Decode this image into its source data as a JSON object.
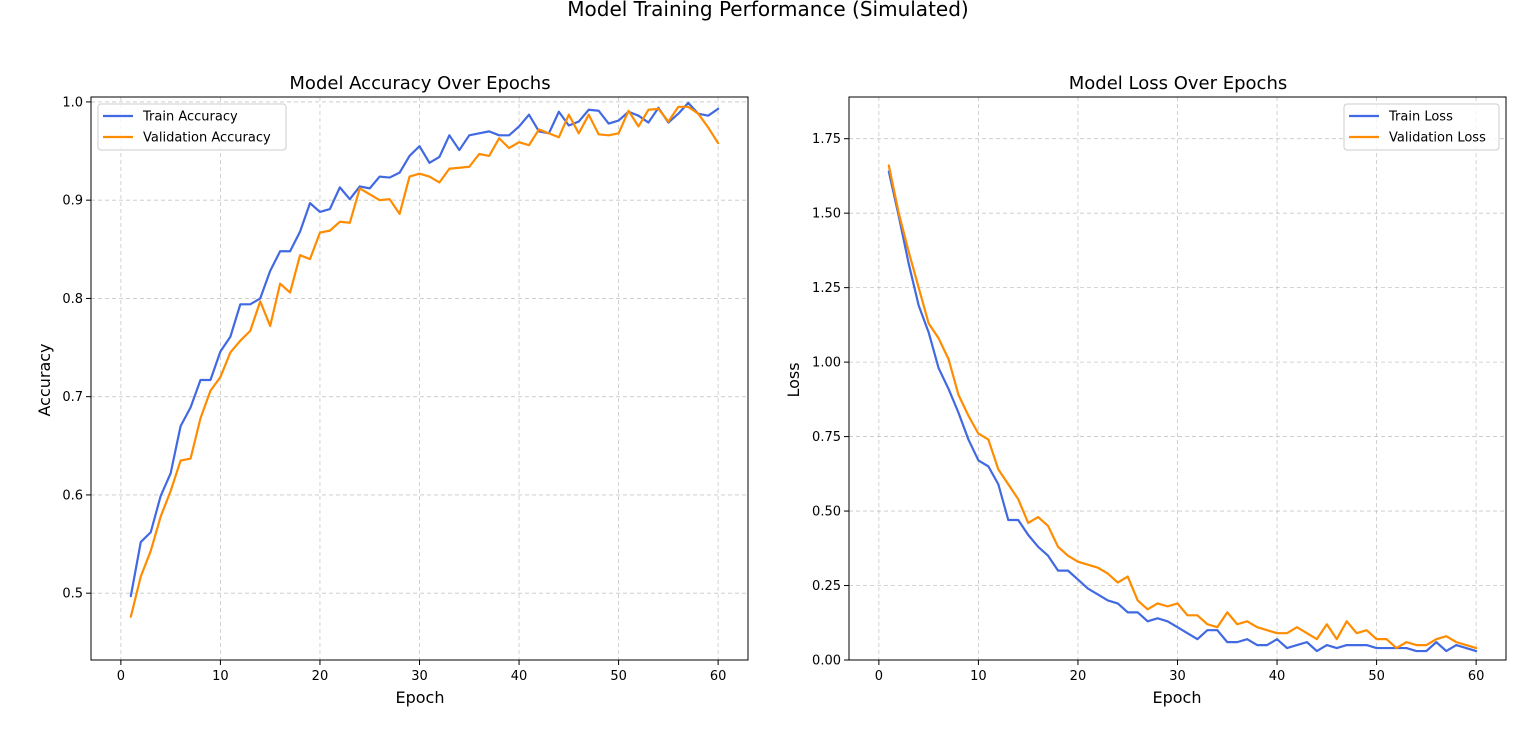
{
  "figure": {
    "suptitle": "Model Training Performance (Simulated)"
  },
  "colors": {
    "train": "#4169e1",
    "validation": "#ff8c00"
  },
  "chart_data": [
    {
      "type": "line",
      "title": "Model Accuracy Over Epochs",
      "xlabel": "Epoch",
      "ylabel": "Accuracy",
      "xlim": [
        -3,
        63
      ],
      "ylim": [
        0.432,
        1.005
      ],
      "xticks": [
        0,
        10,
        20,
        30,
        40,
        50,
        60
      ],
      "yticks": [
        0.5,
        0.6,
        0.7,
        0.8,
        0.9,
        1.0
      ],
      "ytick_labels": [
        "0.5",
        "0.6",
        "0.7",
        "0.8",
        "0.9",
        "1.0"
      ],
      "grid": true,
      "legend": "upper-left",
      "series": [
        {
          "name": "Train Accuracy",
          "color": "#4169e1",
          "x": [
            1,
            2,
            3,
            4,
            5,
            6,
            7,
            8,
            9,
            10,
            11,
            12,
            13,
            14,
            15,
            16,
            17,
            18,
            19,
            20,
            21,
            22,
            23,
            24,
            25,
            26,
            27,
            28,
            29,
            30,
            31,
            32,
            33,
            34,
            35,
            36,
            37,
            38,
            39,
            40,
            41,
            42,
            43,
            44,
            45,
            46,
            47,
            48,
            49,
            50,
            51,
            52,
            53,
            54,
            55,
            56,
            57,
            58,
            59,
            60
          ],
          "values": [
            0.497,
            0.552,
            0.562,
            0.599,
            0.622,
            0.67,
            0.689,
            0.717,
            0.717,
            0.746,
            0.761,
            0.794,
            0.794,
            0.8,
            0.828,
            0.848,
            0.848,
            0.868,
            0.897,
            0.888,
            0.891,
            0.913,
            0.901,
            0.914,
            0.912,
            0.924,
            0.923,
            0.928,
            0.945,
            0.955,
            0.938,
            0.944,
            0.966,
            0.951,
            0.966,
            0.968,
            0.97,
            0.966,
            0.966,
            0.975,
            0.987,
            0.97,
            0.968,
            0.99,
            0.976,
            0.98,
            0.992,
            0.991,
            0.978,
            0.981,
            0.99,
            0.986,
            0.979,
            0.994,
            0.979,
            0.988,
            0.999,
            0.988,
            0.986,
            0.993
          ]
        },
        {
          "name": "Validation Accuracy",
          "color": "#ff8c00",
          "x": [
            1,
            2,
            3,
            4,
            5,
            6,
            7,
            8,
            9,
            10,
            11,
            12,
            13,
            14,
            15,
            16,
            17,
            18,
            19,
            20,
            21,
            22,
            23,
            24,
            25,
            26,
            27,
            28,
            29,
            30,
            31,
            32,
            33,
            34,
            35,
            36,
            37,
            38,
            39,
            40,
            41,
            42,
            43,
            44,
            45,
            46,
            47,
            48,
            49,
            50,
            51,
            52,
            53,
            54,
            55,
            56,
            57,
            58,
            59,
            60
          ],
          "values": [
            0.476,
            0.517,
            0.543,
            0.578,
            0.604,
            0.635,
            0.637,
            0.678,
            0.706,
            0.72,
            0.745,
            0.757,
            0.767,
            0.797,
            0.772,
            0.815,
            0.806,
            0.844,
            0.84,
            0.867,
            0.869,
            0.878,
            0.877,
            0.912,
            0.906,
            0.9,
            0.901,
            0.886,
            0.924,
            0.927,
            0.924,
            0.918,
            0.932,
            0.933,
            0.934,
            0.947,
            0.945,
            0.963,
            0.953,
            0.959,
            0.956,
            0.972,
            0.968,
            0.964,
            0.987,
            0.968,
            0.987,
            0.967,
            0.966,
            0.968,
            0.991,
            0.975,
            0.992,
            0.993,
            0.98,
            0.995,
            0.995,
            0.988,
            0.974,
            0.958
          ]
        }
      ]
    },
    {
      "type": "line",
      "title": "Model Loss Over Epochs",
      "xlabel": "Epoch",
      "ylabel": "Loss",
      "xlim": [
        -3,
        63
      ],
      "ylim": [
        0.0,
        1.89
      ],
      "xticks": [
        0,
        10,
        20,
        30,
        40,
        50,
        60
      ],
      "yticks": [
        0.0,
        0.25,
        0.5,
        0.75,
        1.0,
        1.25,
        1.5,
        1.75
      ],
      "ytick_labels": [
        "0.00",
        "0.25",
        "0.50",
        "0.75",
        "1.00",
        "1.25",
        "1.50",
        "1.75"
      ],
      "grid": true,
      "legend": "upper-right",
      "series": [
        {
          "name": "Train Loss",
          "color": "#4169e1",
          "x": [
            1,
            2,
            3,
            4,
            5,
            6,
            7,
            8,
            9,
            10,
            11,
            12,
            13,
            14,
            15,
            16,
            17,
            18,
            19,
            20,
            21,
            22,
            23,
            24,
            25,
            26,
            27,
            28,
            29,
            30,
            31,
            32,
            33,
            34,
            35,
            36,
            37,
            38,
            39,
            40,
            41,
            42,
            43,
            44,
            45,
            46,
            47,
            48,
            49,
            50,
            51,
            52,
            53,
            54,
            55,
            56,
            57,
            58,
            59,
            60
          ],
          "values": [
            1.64,
            1.49,
            1.33,
            1.19,
            1.1,
            0.98,
            0.91,
            0.83,
            0.74,
            0.67,
            0.65,
            0.59,
            0.47,
            0.47,
            0.42,
            0.38,
            0.35,
            0.3,
            0.3,
            0.27,
            0.24,
            0.22,
            0.2,
            0.19,
            0.16,
            0.16,
            0.13,
            0.14,
            0.13,
            0.11,
            0.09,
            0.07,
            0.1,
            0.1,
            0.06,
            0.06,
            0.07,
            0.05,
            0.05,
            0.07,
            0.04,
            0.05,
            0.06,
            0.03,
            0.05,
            0.04,
            0.05,
            0.05,
            0.05,
            0.04,
            0.04,
            0.04,
            0.04,
            0.03,
            0.03,
            0.06,
            0.03,
            0.05,
            0.04,
            0.03
          ]
        },
        {
          "name": "Validation Loss",
          "color": "#ff8c00",
          "x": [
            1,
            2,
            3,
            4,
            5,
            6,
            7,
            8,
            9,
            10,
            11,
            12,
            13,
            14,
            15,
            16,
            17,
            18,
            19,
            20,
            21,
            22,
            23,
            24,
            25,
            26,
            27,
            28,
            29,
            30,
            31,
            32,
            33,
            34,
            35,
            36,
            37,
            38,
            39,
            40,
            41,
            42,
            43,
            44,
            45,
            46,
            47,
            48,
            49,
            50,
            51,
            52,
            53,
            54,
            55,
            56,
            57,
            58,
            59,
            60
          ],
          "values": [
            1.66,
            1.5,
            1.37,
            1.25,
            1.13,
            1.08,
            1.01,
            0.89,
            0.82,
            0.76,
            0.74,
            0.64,
            0.59,
            0.54,
            0.46,
            0.48,
            0.45,
            0.38,
            0.35,
            0.33,
            0.32,
            0.31,
            0.29,
            0.26,
            0.28,
            0.2,
            0.17,
            0.19,
            0.18,
            0.19,
            0.15,
            0.15,
            0.12,
            0.11,
            0.16,
            0.12,
            0.13,
            0.11,
            0.1,
            0.09,
            0.09,
            0.11,
            0.09,
            0.07,
            0.12,
            0.07,
            0.13,
            0.09,
            0.1,
            0.07,
            0.07,
            0.04,
            0.06,
            0.05,
            0.05,
            0.07,
            0.08,
            0.06,
            0.05,
            0.04
          ]
        }
      ]
    }
  ]
}
